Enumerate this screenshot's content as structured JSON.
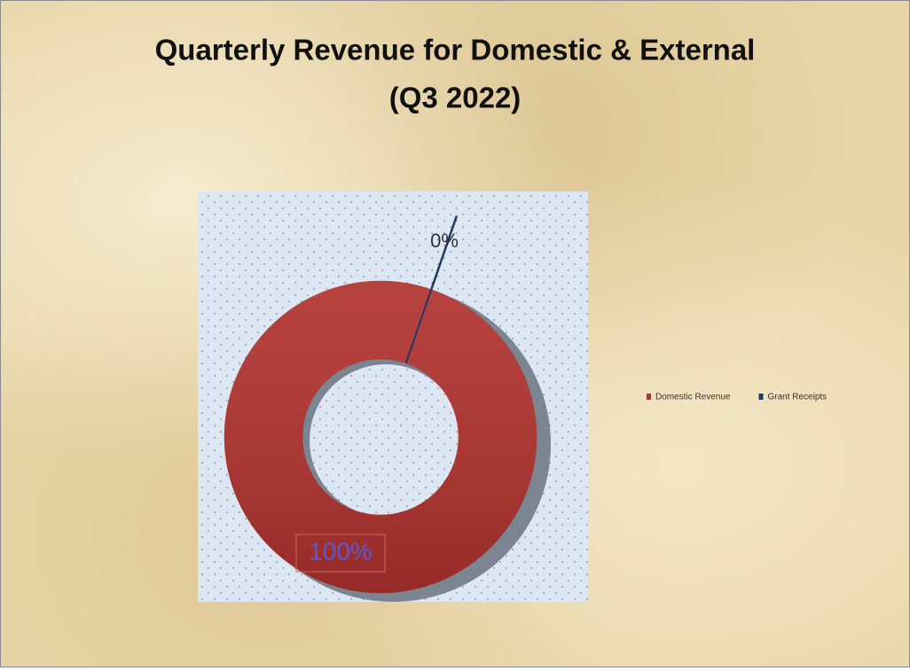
{
  "chart_data": {
    "type": "donut",
    "title": "Quarterly Revenue for Domestic & External",
    "subtitle": "(Q3 2022)",
    "categories": [
      "Domestic Revenue",
      "Grant Receipts"
    ],
    "values": [
      100,
      0
    ],
    "value_labels": [
      "100%",
      "0%"
    ],
    "colors": [
      "#b0312d",
      "#1f3864"
    ],
    "legend": "right"
  }
}
